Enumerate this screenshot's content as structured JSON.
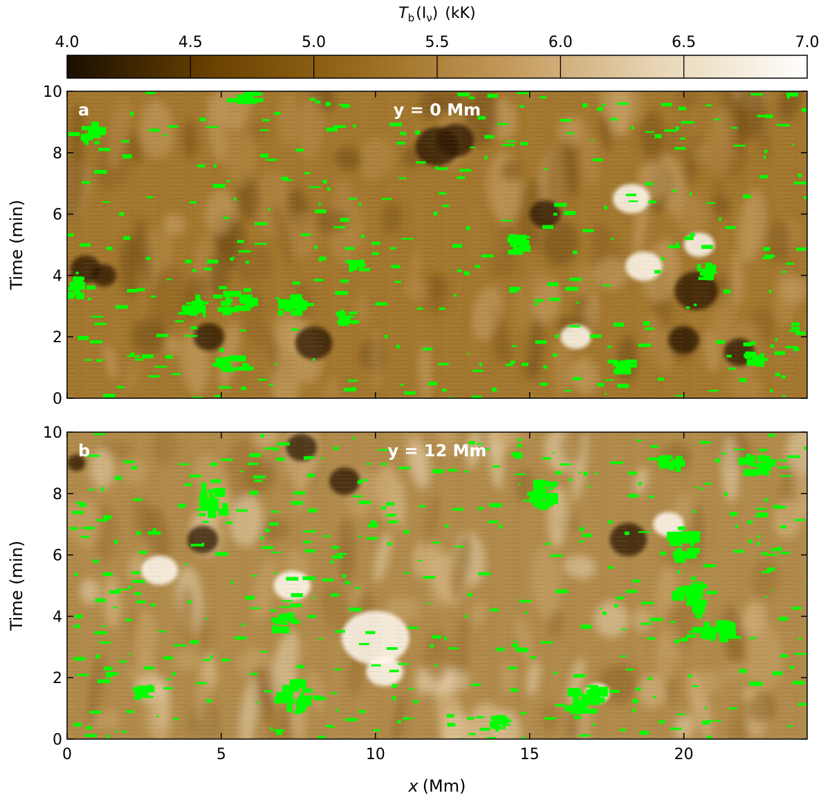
{
  "chart_data": {
    "type": "heatmap",
    "colorbar": {
      "label_main": "T",
      "label_sub": "b",
      "label_arg": "(I",
      "label_arg_sub": "ν",
      "label_close": ")",
      "label_unit": "(kK)",
      "ticks": [
        "4.0",
        "4.5",
        "5.0",
        "5.5",
        "6.0",
        "6.5",
        "7.0"
      ],
      "range": [
        4.0,
        7.0
      ],
      "colormap": [
        "#1a0f00",
        "#6b4200",
        "#9a6b1e",
        "#c49a5c",
        "#e8d6b5",
        "#ffffff"
      ]
    },
    "overlay_color": "#00ff00",
    "xlabel_italic": "x",
    "xlabel_unit": "(Mm)",
    "ylabel": "Time (min)",
    "xlim": [
      0,
      24
    ],
    "ylim": [
      0,
      10
    ],
    "xticks": [
      "0",
      "5",
      "10",
      "15",
      "20"
    ],
    "yticks": [
      "0",
      "2",
      "4",
      "6",
      "8",
      "10"
    ],
    "panels": [
      {
        "letter": "a",
        "annotation": "y = 0 Mm",
        "dark_spots": [
          [
            4.6,
            2.0,
            0.5
          ],
          [
            8.0,
            1.8,
            0.6
          ],
          [
            12.0,
            8.2,
            0.7
          ],
          [
            12.6,
            8.4,
            0.6
          ],
          [
            20.4,
            3.5,
            0.7
          ],
          [
            20.0,
            1.9,
            0.5
          ],
          [
            21.8,
            1.5,
            0.5
          ],
          [
            0.6,
            4.2,
            0.5
          ],
          [
            1.2,
            4.0,
            0.4
          ],
          [
            15.5,
            6.0,
            0.5
          ]
        ],
        "bright_spots": [
          [
            18.7,
            4.3,
            0.6
          ],
          [
            18.3,
            6.5,
            0.6
          ],
          [
            16.5,
            2.0,
            0.5
          ],
          [
            20.5,
            5.0,
            0.5
          ]
        ],
        "green_blobs": [
          [
            0.8,
            8.6,
            0.6,
            0.6
          ],
          [
            5.8,
            9.8,
            0.8,
            0.3
          ],
          [
            4.2,
            3.0,
            0.6,
            0.7
          ],
          [
            5.6,
            3.1,
            0.9,
            0.6
          ],
          [
            7.2,
            3.0,
            0.8,
            0.6
          ],
          [
            5.4,
            1.1,
            0.9,
            0.4
          ],
          [
            0.3,
            3.6,
            0.4,
            0.6
          ],
          [
            9.1,
            2.6,
            0.5,
            0.4
          ],
          [
            14.6,
            5.0,
            0.5,
            0.5
          ],
          [
            20.7,
            4.1,
            0.5,
            0.5
          ],
          [
            22.3,
            1.3,
            0.5,
            0.5
          ],
          [
            18.0,
            1.0,
            0.6,
            0.4
          ],
          [
            9.4,
            4.3,
            0.5,
            0.3
          ]
        ]
      },
      {
        "letter": "b",
        "annotation": "y = 12 Mm",
        "dark_spots": [
          [
            7.6,
            9.5,
            0.5
          ],
          [
            4.4,
            6.5,
            0.5
          ],
          [
            18.2,
            6.5,
            0.6
          ],
          [
            9.0,
            8.4,
            0.5
          ],
          [
            0.3,
            9.0,
            0.3
          ]
        ],
        "bright_spots": [
          [
            10.0,
            3.3,
            1.1
          ],
          [
            10.3,
            2.2,
            0.6
          ],
          [
            7.3,
            5.0,
            0.6
          ],
          [
            17.2,
            1.5,
            0.4
          ],
          [
            19.5,
            7.0,
            0.5
          ],
          [
            3.0,
            5.5,
            0.6
          ]
        ],
        "green_blobs": [
          [
            4.8,
            7.8,
            0.8,
            0.9
          ],
          [
            7.4,
            1.4,
            0.9,
            1.0
          ],
          [
            7.0,
            3.8,
            0.6,
            0.6
          ],
          [
            16.8,
            1.3,
            0.9,
            0.8
          ],
          [
            20.2,
            4.6,
            0.8,
            0.8
          ],
          [
            21.0,
            3.6,
            1.0,
            0.7
          ],
          [
            22.4,
            8.9,
            0.8,
            0.5
          ],
          [
            19.6,
            8.9,
            0.6,
            0.6
          ],
          [
            20.0,
            6.3,
            0.8,
            0.8
          ],
          [
            15.5,
            8.0,
            0.6,
            0.8
          ],
          [
            2.5,
            1.5,
            0.6,
            0.4
          ],
          [
            14.0,
            0.5,
            0.5,
            0.4
          ]
        ]
      }
    ]
  }
}
